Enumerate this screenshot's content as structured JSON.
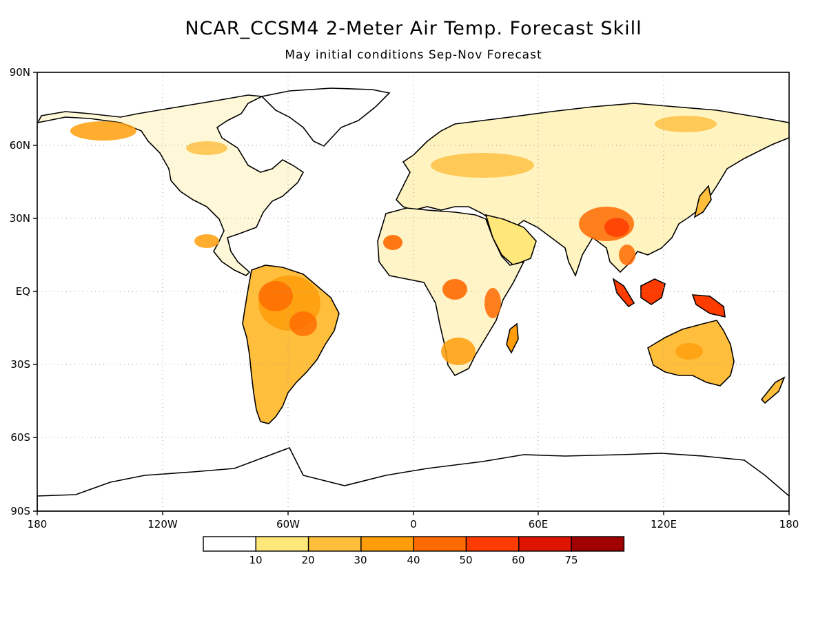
{
  "title": "NCAR_CCSM4 2-Meter Air Temp. Forecast Skill",
  "subtitle": "May initial conditions  Sep-Nov Forecast",
  "axes": {
    "lat_labels": [
      "90N",
      "60N",
      "30N",
      "EQ",
      "30S",
      "60S",
      "90S"
    ],
    "lon_labels": [
      "180",
      "120W",
      "60W",
      "0",
      "60E",
      "120E",
      "180"
    ]
  },
  "colorbar": {
    "colors": [
      "#ffffff",
      "#ffe77a",
      "#ffbe3c",
      "#ff9e0a",
      "#ff6a00",
      "#ff3c00",
      "#dc1400",
      "#a00000"
    ],
    "labels": [
      "10",
      "20",
      "30",
      "40",
      "50",
      "60",
      "75"
    ]
  },
  "grid": true,
  "coastline_color": "#000000"
}
